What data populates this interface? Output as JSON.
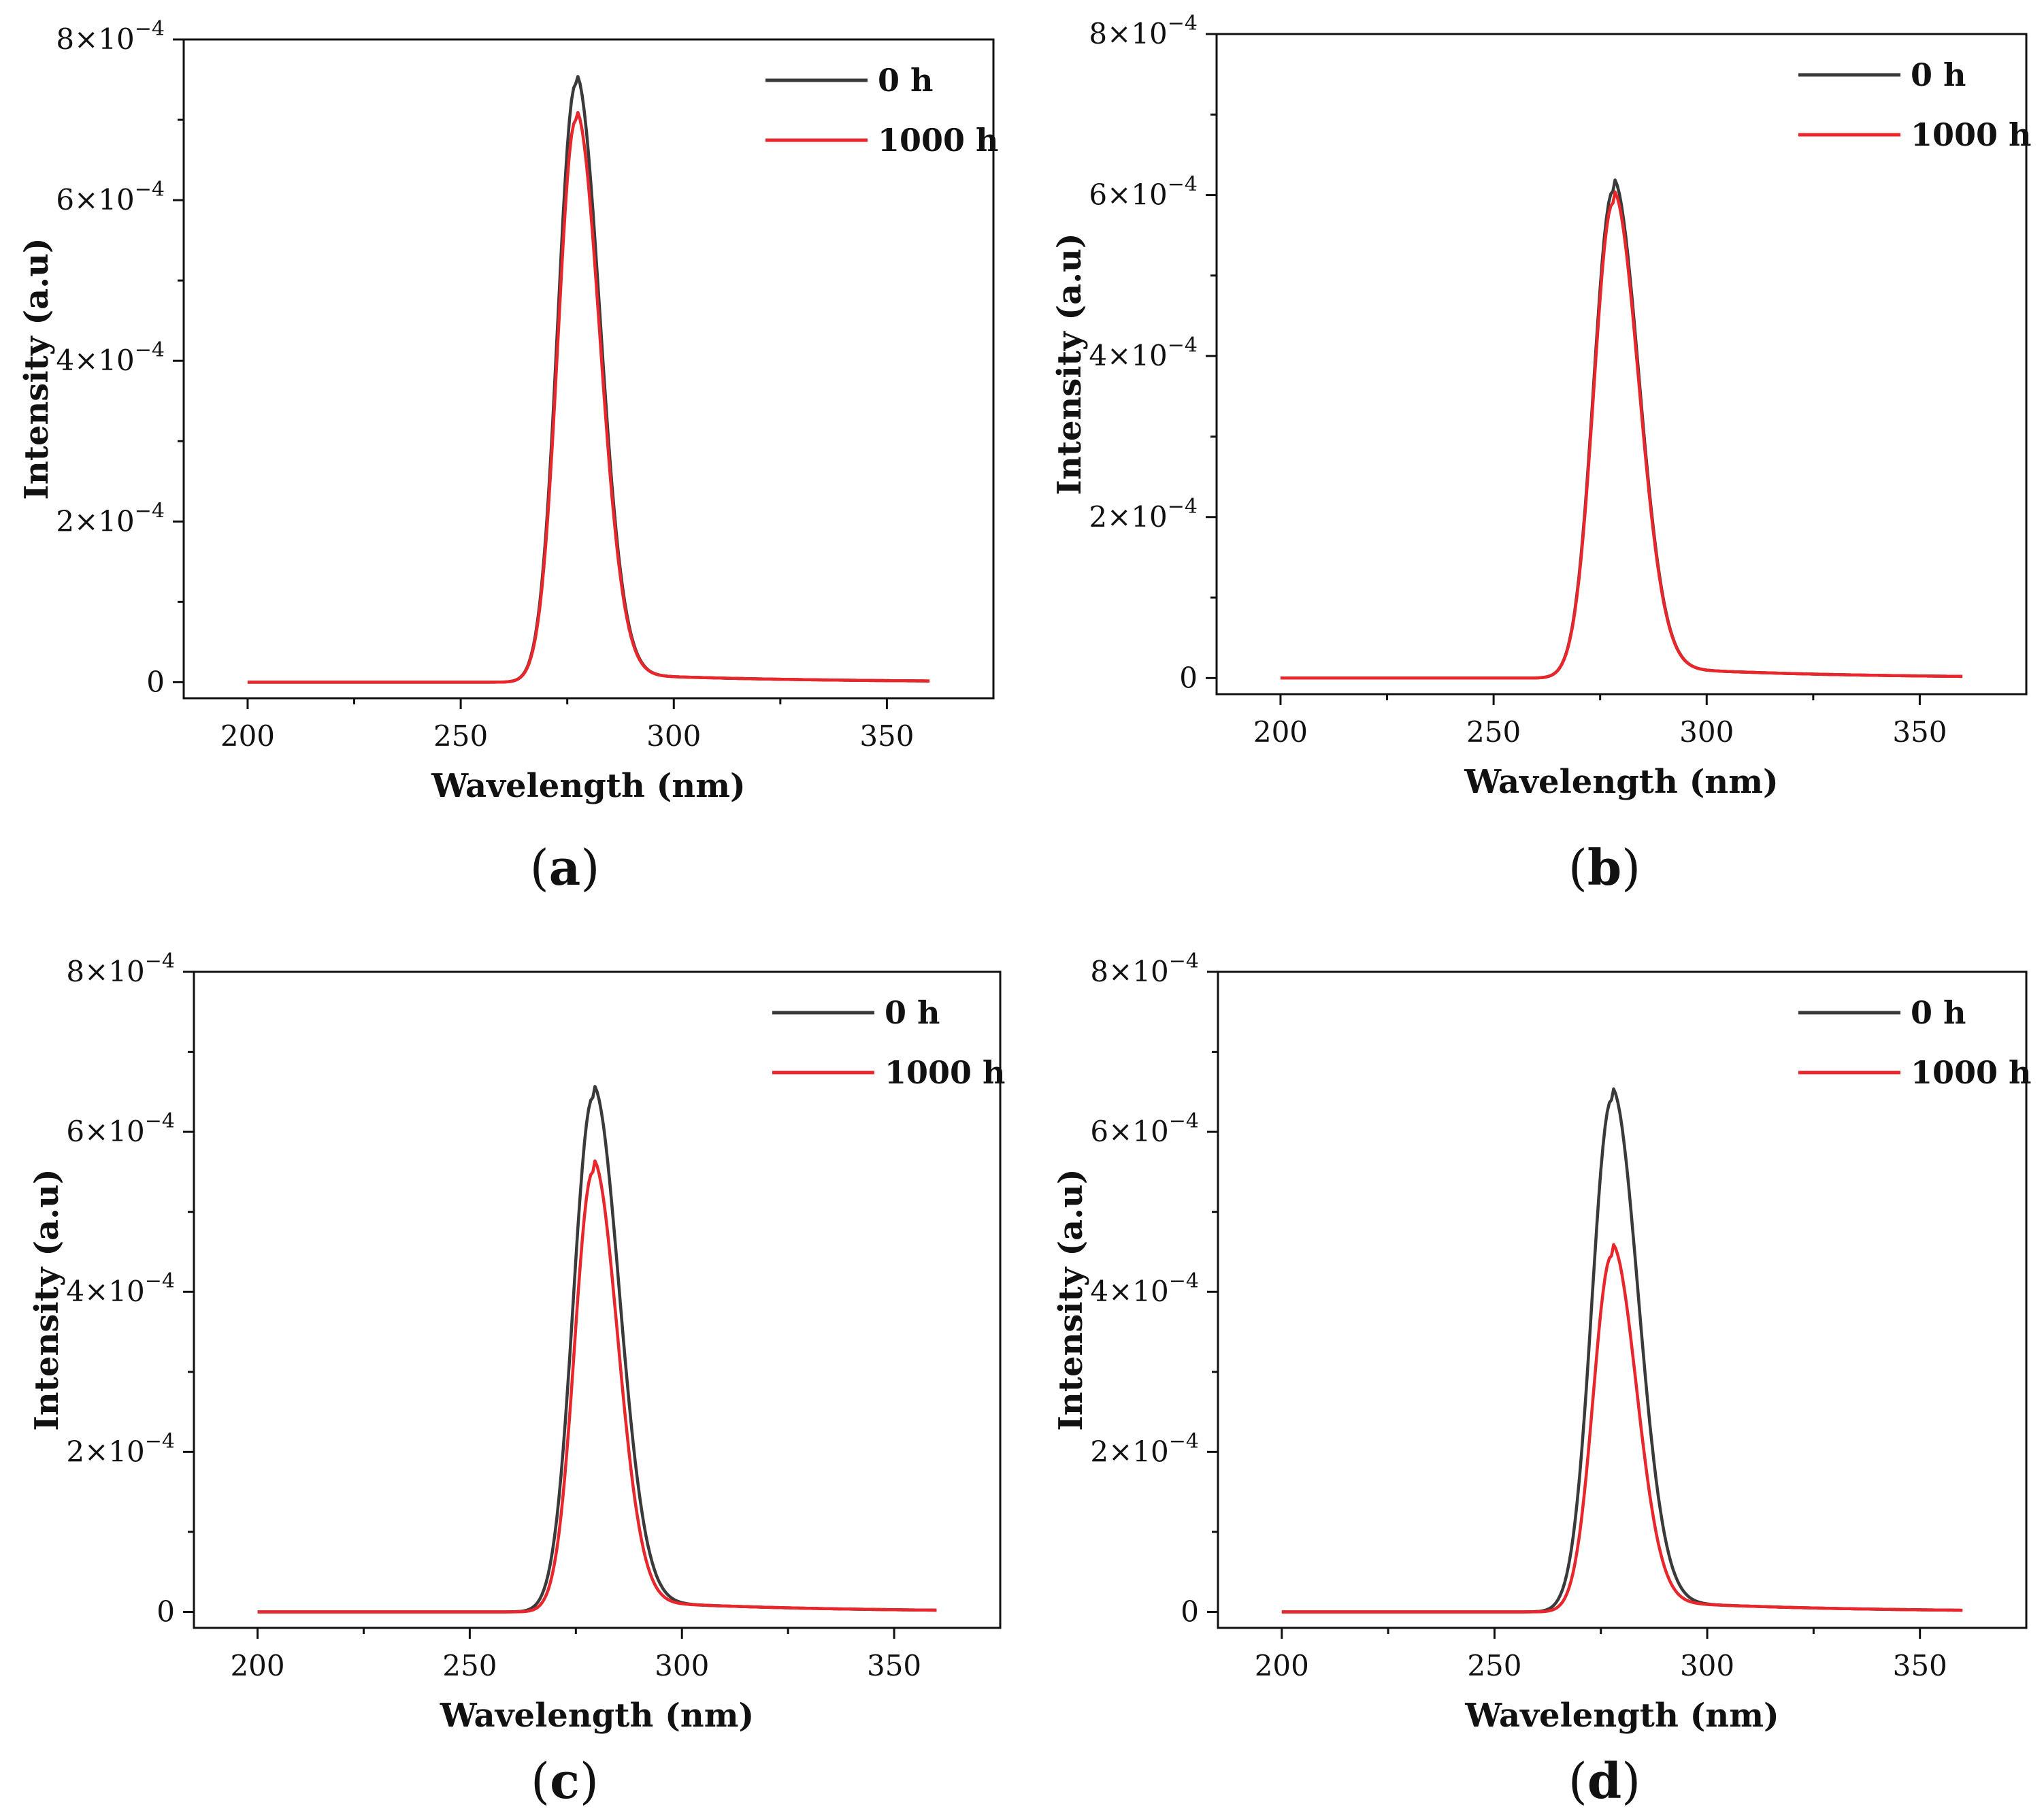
{
  "chart_data": [
    {
      "type": "line",
      "panel": "a",
      "xlabel": "Wavelength (nm)",
      "ylabel": "Intensity (a.u)",
      "xlim": [
        185,
        375
      ],
      "ylim": [
        -2e-05,
        0.0008
      ],
      "xticks": [
        200,
        250,
        300,
        350
      ],
      "yticks": [
        {
          "value": 0,
          "label": "0"
        },
        {
          "value": 0.0002,
          "label": "2×10",
          "exp": "−4"
        },
        {
          "value": 0.0004,
          "label": "4×10",
          "exp": "−4"
        },
        {
          "value": 0.0006,
          "label": "6×10",
          "exp": "−4"
        },
        {
          "value": 0.0008,
          "label": "8×10",
          "exp": "−4"
        }
      ],
      "legend_position": "top-right",
      "series": [
        {
          "name": "0 h",
          "color": "#3a3a3a",
          "peak": 0.000745,
          "center": 277,
          "sigma_left": 4.2,
          "sigma_right": 5.6,
          "tail": 1.5e-06
        },
        {
          "name": "1000 h",
          "color": "#e8262b",
          "peak": 0.0007,
          "center": 277,
          "sigma_left": 4.2,
          "sigma_right": 5.6,
          "tail": 1.5e-06
        }
      ]
    },
    {
      "type": "line",
      "panel": "b",
      "xlabel": "Wavelength (nm)",
      "ylabel": "Intensity (a.u)",
      "xlim": [
        185,
        375
      ],
      "ylim": [
        -2e-05,
        0.0008
      ],
      "xticks": [
        200,
        250,
        300,
        350
      ],
      "yticks": [
        {
          "value": 0,
          "label": "0"
        },
        {
          "value": 0.0002,
          "label": "2×10",
          "exp": "−4"
        },
        {
          "value": 0.0004,
          "label": "4×10",
          "exp": "−4"
        },
        {
          "value": 0.0006,
          "label": "6×10",
          "exp": "−4"
        },
        {
          "value": 0.0008,
          "label": "8×10",
          "exp": "−4"
        }
      ],
      "legend_position": "top-right",
      "series": [
        {
          "name": "0 h",
          "color": "#3a3a3a",
          "peak": 0.000605,
          "center": 278,
          "sigma_left": 4.5,
          "sigma_right": 6.0,
          "tail": 2e-06
        },
        {
          "name": "1000 h",
          "color": "#e8262b",
          "peak": 0.00059,
          "center": 278,
          "sigma_left": 4.5,
          "sigma_right": 6.0,
          "tail": 2e-06
        }
      ]
    },
    {
      "type": "line",
      "panel": "c",
      "xlabel": "Wavelength (nm)",
      "ylabel": "Intensity (a.u)",
      "xlim": [
        185,
        375
      ],
      "ylim": [
        -2e-05,
        0.0008
      ],
      "xticks": [
        200,
        250,
        300,
        350
      ],
      "yticks": [
        {
          "value": 0,
          "label": "0"
        },
        {
          "value": 0.0002,
          "label": "2×10",
          "exp": "−4"
        },
        {
          "value": 0.0004,
          "label": "4×10",
          "exp": "−4"
        },
        {
          "value": 0.0006,
          "label": "6×10",
          "exp": "−4"
        },
        {
          "value": 0.0008,
          "label": "8×10",
          "exp": "−4"
        }
      ],
      "legend_position": "top-right",
      "series": [
        {
          "name": "0 h",
          "color": "#3a3a3a",
          "peak": 0.000643,
          "center": 279,
          "sigma_left": 4.6,
          "sigma_right": 6.2,
          "tail": 2e-06
        },
        {
          "name": "1000 h",
          "color": "#e8262b",
          "peak": 0.00055,
          "center": 279,
          "sigma_left": 4.3,
          "sigma_right": 5.8,
          "tail": 2e-06
        }
      ]
    },
    {
      "type": "line",
      "panel": "d",
      "xlabel": "Wavelength (nm)",
      "ylabel": "Intensity (a.u)",
      "xlim": [
        185,
        375
      ],
      "ylim": [
        -2e-05,
        0.0008
      ],
      "xticks": [
        200,
        250,
        300,
        350
      ],
      "yticks": [
        {
          "value": 0,
          "label": "0"
        },
        {
          "value": 0.0002,
          "label": "2×10",
          "exp": "−4"
        },
        {
          "value": 0.0004,
          "label": "4×10",
          "exp": "−4"
        },
        {
          "value": 0.0006,
          "label": "6×10",
          "exp": "−4"
        },
        {
          "value": 0.0008,
          "label": "8×10",
          "exp": "−4"
        }
      ],
      "legend_position": "top-right",
      "series": [
        {
          "name": "0 h",
          "color": "#3a3a3a",
          "peak": 0.00064,
          "center": 277.5,
          "sigma_left": 4.6,
          "sigma_right": 6.2,
          "tail": 2e-06
        },
        {
          "name": "1000 h",
          "color": "#e8262b",
          "peak": 0.000445,
          "center": 277.5,
          "sigma_left": 4.3,
          "sigma_right": 5.8,
          "tail": 2e-06
        }
      ]
    }
  ]
}
